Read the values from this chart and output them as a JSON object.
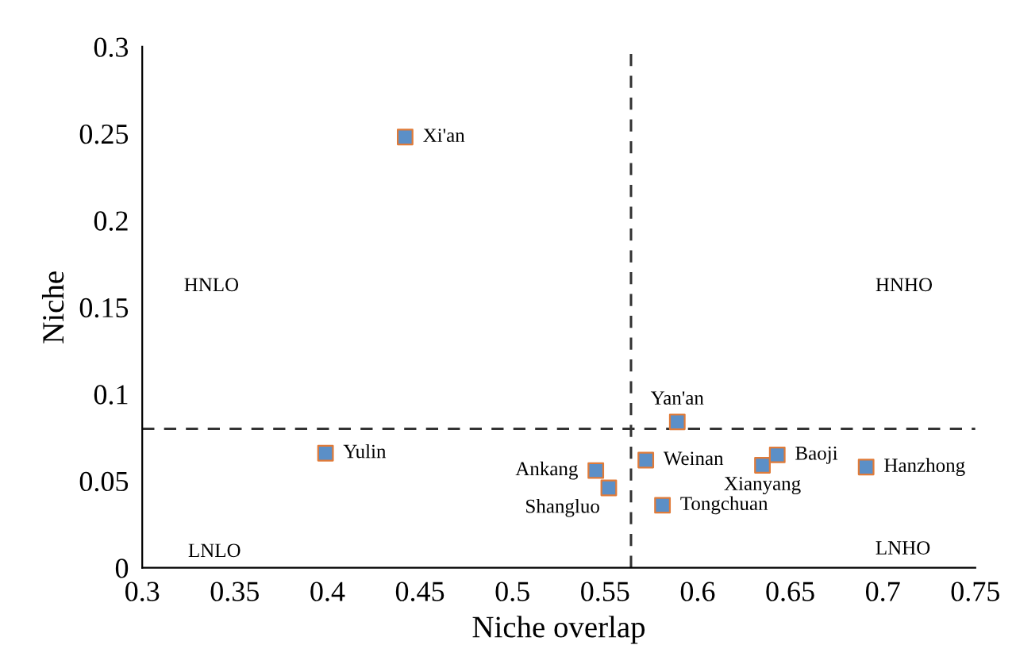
{
  "chart_data": {
    "type": "scatter",
    "xlabel": "Niche overlap",
    "ylabel": "Niche",
    "x": [
      0.442,
      0.399,
      0.545,
      0.552,
      0.572,
      0.581,
      0.589,
      0.635,
      0.643,
      0.691
    ],
    "series": [
      {
        "color": "#5b8fc7",
        "values": [
          0.248,
          0.066,
          0.056,
          0.046,
          0.062,
          0.036,
          0.084,
          0.059,
          0.065,
          0.058
        ]
      }
    ],
    "marker": "square",
    "xlim": [
      0.3,
      0.75
    ],
    "ylim": [
      0,
      0.3
    ],
    "xticks": [
      0.3,
      0.35,
      0.4,
      0.45,
      0.5,
      0.55,
      0.6,
      0.65,
      0.7,
      0.75
    ],
    "yticks": [
      0,
      0.05,
      0.1,
      0.15,
      0.2,
      0.25,
      0.3
    ],
    "grid": false,
    "legend": false,
    "ref_lines": [
      {
        "axis": "x",
        "value": 0.564,
        "line_style": "dashed",
        "color": "#333333"
      },
      {
        "axis": "y",
        "value": 0.08,
        "line_style": "dashed",
        "color": "#333333"
      }
    ],
    "annotations": [
      {
        "text": "Xi'an",
        "x": 0.442,
        "y": 0.248
      },
      {
        "text": "Yulin",
        "x": 0.399,
        "y": 0.066
      },
      {
        "text": "Ankang",
        "x": 0.545,
        "y": 0.056
      },
      {
        "text": "Shangluo",
        "x": 0.552,
        "y": 0.046
      },
      {
        "text": "Weinan",
        "x": 0.572,
        "y": 0.062
      },
      {
        "text": "Tongchuan",
        "x": 0.581,
        "y": 0.036
      },
      {
        "text": "Yan'an",
        "x": 0.589,
        "y": 0.084
      },
      {
        "text": "Xianyang",
        "x": 0.635,
        "y": 0.059
      },
      {
        "text": "Baoji",
        "x": 0.643,
        "y": 0.065
      },
      {
        "text": "Hanzhong",
        "x": 0.691,
        "y": 0.058
      },
      "HNLO",
      "HNHO",
      "LNLO",
      "LNHO"
    ]
  }
}
